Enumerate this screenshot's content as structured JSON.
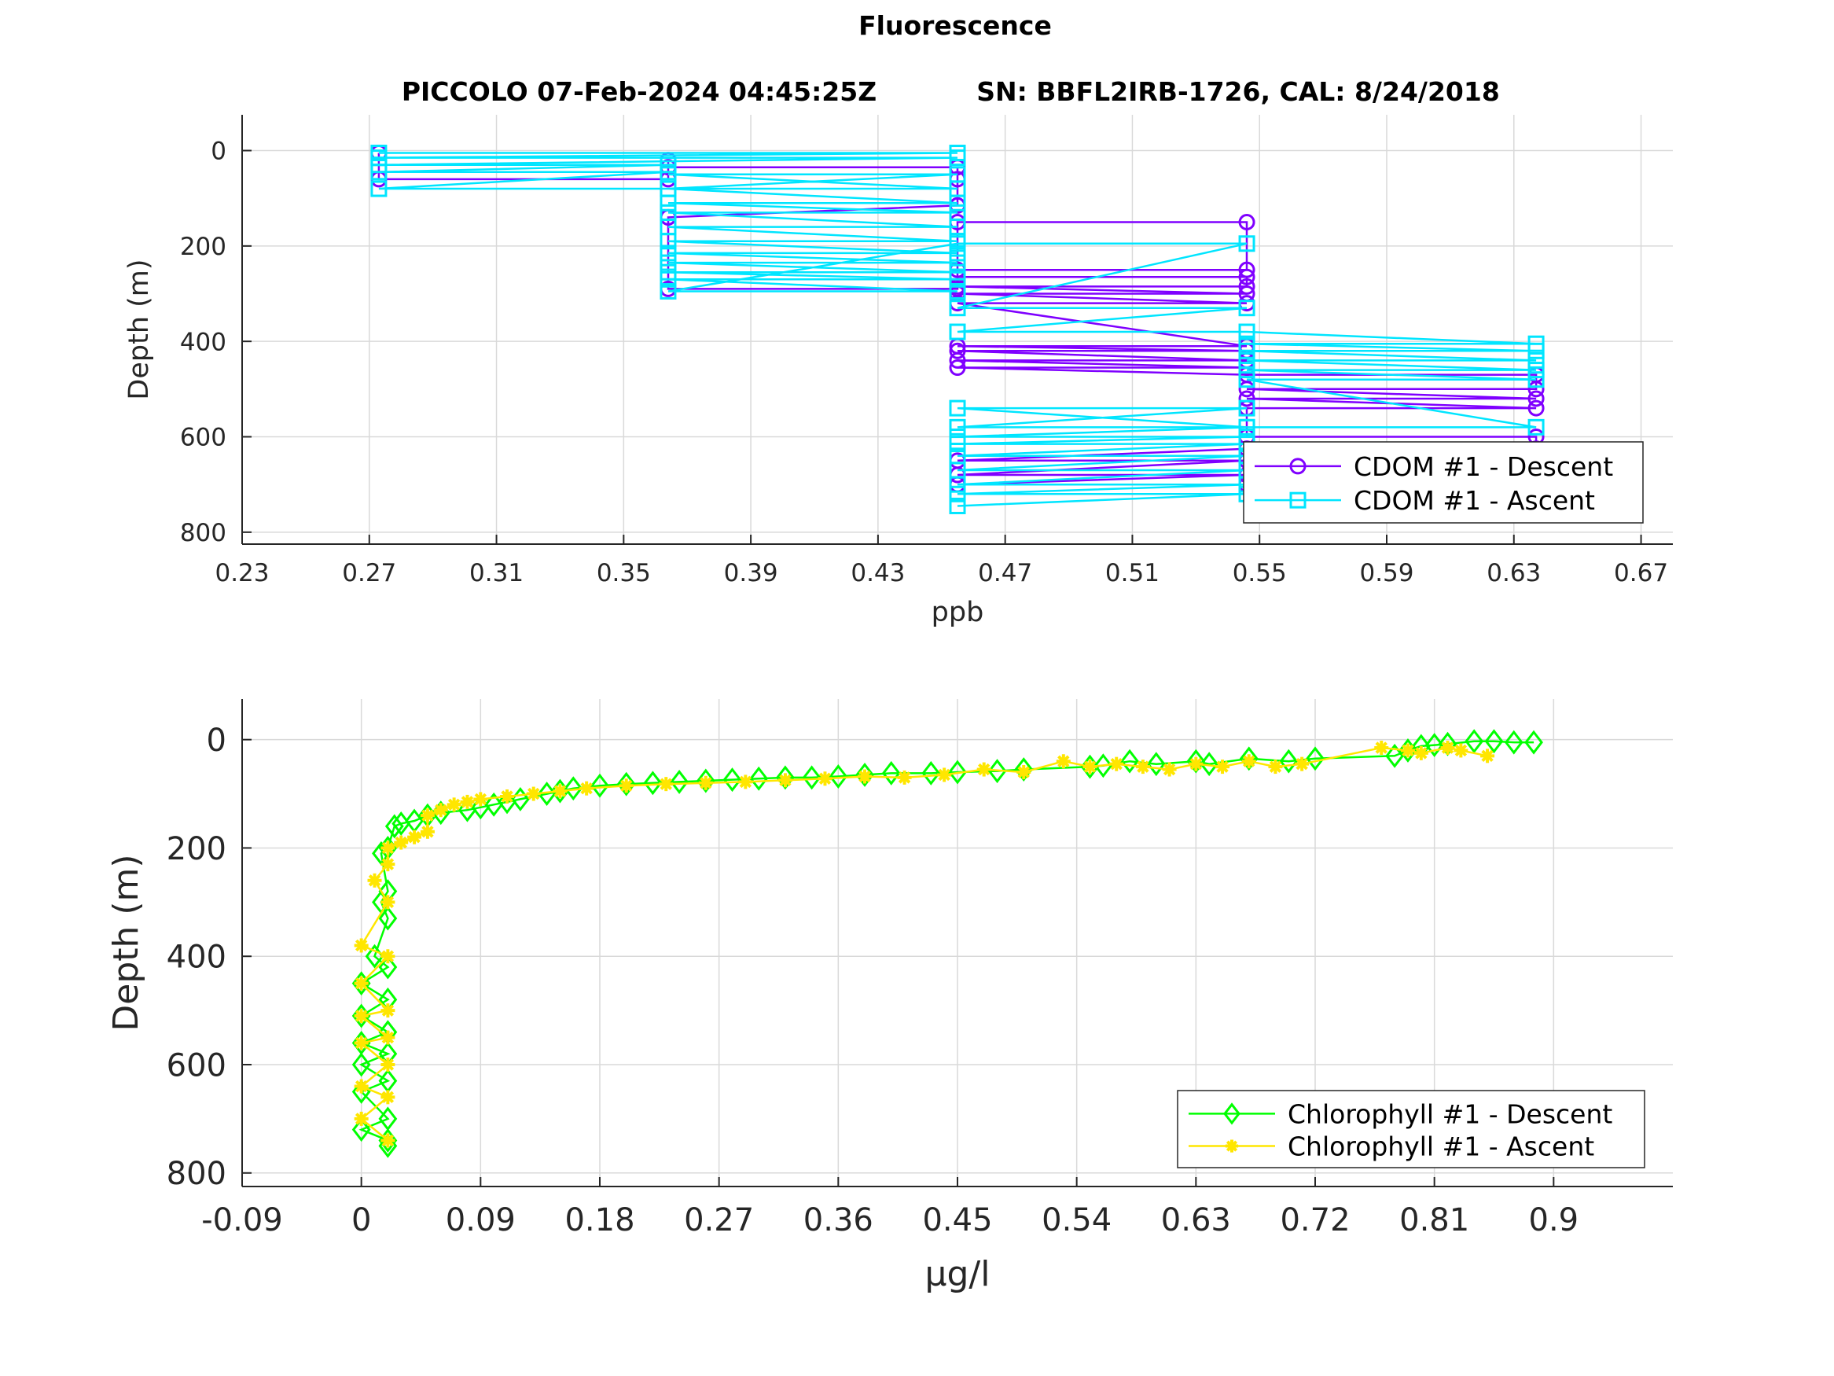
{
  "figure": {
    "title": "Fluorescence",
    "subtitle_left": "PICCOLO 07-Feb-2024 04:45:25Z",
    "subtitle_right": "SN: BBFL2IRB-1726, CAL: 8/24/2018"
  },
  "colors": {
    "cdom_descent": "#7f00ff",
    "cdom_ascent": "#00e5ff",
    "chl_descent": "#00ff00",
    "chl_ascent": "#ffe600",
    "grid": "#d9d9d9",
    "axis": "#262626"
  },
  "chart_data": [
    {
      "type": "line",
      "subplot": "top",
      "xlabel": "ppb",
      "ylabel": "Depth (m)",
      "xlim": [
        0.23,
        0.68
      ],
      "ylim": [
        -75,
        825
      ],
      "y_reversed": true,
      "grid": true,
      "xticks": [
        "0.23",
        "0.27",
        "0.31",
        "0.35",
        "0.39",
        "0.43",
        "0.47",
        "0.51",
        "0.55",
        "0.59",
        "0.63",
        "0.67"
      ],
      "yticks": [
        "0",
        "200",
        "400",
        "600",
        "800"
      ],
      "legend_position": "bottom-right",
      "series": [
        {
          "name": "CDOM #1 - Descent",
          "marker": "circle",
          "color_key": "cdom_descent",
          "x": [
            0.273,
            0.273,
            0.364,
            0.364,
            0.364,
            0.455,
            0.455,
            0.455,
            0.455,
            0.364,
            0.364,
            0.364,
            0.455,
            0.455,
            0.546,
            0.546,
            0.455,
            0.455,
            0.546,
            0.546,
            0.455,
            0.546,
            0.455,
            0.546,
            0.455,
            0.546,
            0.455,
            0.546,
            0.455,
            0.546,
            0.455,
            0.546,
            0.455,
            0.546,
            0.637,
            0.637,
            0.546,
            0.637,
            0.546,
            0.637,
            0.546,
            0.546,
            0.637,
            0.637,
            0.546,
            0.455,
            0.546,
            0.455,
            0.546,
            0.455,
            0.546
          ],
          "y": [
            5,
            60,
            60,
            20,
            35,
            35,
            60,
            115,
            115,
            140,
            140,
            290,
            290,
            150,
            150,
            250,
            250,
            265,
            265,
            285,
            285,
            300,
            300,
            320,
            320,
            410,
            410,
            420,
            420,
            440,
            440,
            455,
            455,
            470,
            470,
            500,
            500,
            520,
            520,
            540,
            540,
            600,
            600,
            625,
            625,
            650,
            650,
            680,
            680,
            700,
            700
          ]
        },
        {
          "name": "CDOM #1 - Ascent",
          "marker": "square",
          "color_key": "cdom_ascent",
          "x": [
            0.273,
            0.455,
            0.273,
            0.455,
            0.273,
            0.364,
            0.273,
            0.364,
            0.273,
            0.364,
            0.455,
            0.364,
            0.455,
            0.364,
            0.455,
            0.364,
            0.455,
            0.364,
            0.455,
            0.364,
            0.455,
            0.364,
            0.455,
            0.364,
            0.455,
            0.364,
            0.455,
            0.364,
            0.455,
            0.364,
            0.455,
            0.364,
            0.455,
            0.546,
            0.455,
            0.546,
            0.455,
            0.546,
            0.637,
            0.546,
            0.637,
            0.546,
            0.637,
            0.546,
            0.637,
            0.546,
            0.637,
            0.546,
            0.637,
            0.546,
            0.455,
            0.546,
            0.455,
            0.546,
            0.455,
            0.546,
            0.455,
            0.546,
            0.455,
            0.546,
            0.455,
            0.546,
            0.455,
            0.546,
            0.455,
            0.546,
            0.455
          ],
          "y": [
            5,
            5,
            15,
            15,
            30,
            30,
            45,
            45,
            80,
            80,
            50,
            50,
            80,
            80,
            110,
            110,
            130,
            130,
            160,
            160,
            190,
            190,
            215,
            215,
            235,
            235,
            255,
            255,
            270,
            270,
            295,
            295,
            195,
            195,
            330,
            330,
            380,
            380,
            405,
            405,
            420,
            420,
            440,
            440,
            460,
            460,
            480,
            480,
            580,
            580,
            540,
            540,
            580,
            580,
            600,
            600,
            615,
            615,
            640,
            640,
            670,
            670,
            700,
            700,
            720,
            720,
            745
          ]
        }
      ]
    },
    {
      "type": "line",
      "subplot": "bottom",
      "xlabel": "μg/l",
      "ylabel": "Depth (m)",
      "xlim": [
        -0.09,
        0.99
      ],
      "ylim": [
        -75,
        825
      ],
      "y_reversed": true,
      "grid": true,
      "xticks": [
        "-0.09",
        "0",
        "0.09",
        "0.18",
        "0.27",
        "0.36",
        "0.45",
        "0.54",
        "0.63",
        "0.72",
        "0.81",
        "0.9"
      ],
      "yticks": [
        "0",
        "200",
        "400",
        "600",
        "800"
      ],
      "legend_position": "bottom-right",
      "series": [
        {
          "name": "Chlorophyll #1 - Descent",
          "marker": "diamond",
          "color_key": "chl_descent",
          "x": [
            0.885,
            0.87,
            0.855,
            0.84,
            0.82,
            0.81,
            0.8,
            0.79,
            0.78,
            0.72,
            0.7,
            0.67,
            0.64,
            0.63,
            0.6,
            0.58,
            0.56,
            0.55,
            0.5,
            0.48,
            0.45,
            0.43,
            0.4,
            0.38,
            0.36,
            0.34,
            0.32,
            0.3,
            0.28,
            0.26,
            0.24,
            0.22,
            0.2,
            0.18,
            0.16,
            0.15,
            0.14,
            0.12,
            0.11,
            0.1,
            0.09,
            0.08,
            0.06,
            0.05,
            0.04,
            0.03,
            0.025,
            0.02,
            0.015,
            0.02,
            0.015,
            0.02,
            0.01,
            0.02,
            0.0,
            0.02,
            0.0,
            0.02,
            0.0,
            0.02,
            0.0,
            0.02,
            0.0,
            0.02,
            0.0,
            0.02,
            0.02
          ],
          "y": [
            5,
            5,
            3,
            3,
            8,
            10,
            12,
            20,
            30,
            35,
            40,
            35,
            45,
            40,
            45,
            40,
            48,
            50,
            55,
            58,
            60,
            62,
            62,
            65,
            68,
            70,
            70,
            72,
            74,
            76,
            78,
            80,
            82,
            85,
            90,
            95,
            100,
            110,
            115,
            120,
            125,
            130,
            135,
            140,
            150,
            155,
            160,
            200,
            210,
            280,
            300,
            330,
            400,
            420,
            450,
            480,
            510,
            540,
            560,
            580,
            600,
            630,
            650,
            700,
            720,
            740,
            750
          ]
        },
        {
          "name": "Chlorophyll #1 - Ascent",
          "marker": "asterisk",
          "color_key": "chl_ascent",
          "x": [
            0.85,
            0.83,
            0.82,
            0.8,
            0.79,
            0.77,
            0.71,
            0.69,
            0.67,
            0.65,
            0.63,
            0.61,
            0.59,
            0.57,
            0.55,
            0.53,
            0.5,
            0.47,
            0.44,
            0.41,
            0.38,
            0.35,
            0.32,
            0.29,
            0.26,
            0.23,
            0.2,
            0.17,
            0.15,
            0.13,
            0.11,
            0.09,
            0.08,
            0.07,
            0.06,
            0.05,
            0.05,
            0.04,
            0.03,
            0.02,
            0.02,
            0.01,
            0.02,
            0.0,
            0.02,
            0.0,
            0.02,
            0.0,
            0.02,
            0.0,
            0.02,
            0.0,
            0.02,
            0.0,
            0.02
          ],
          "y": [
            30,
            20,
            15,
            25,
            20,
            15,
            45,
            50,
            40,
            50,
            45,
            55,
            50,
            45,
            50,
            40,
            60,
            55,
            65,
            70,
            68,
            72,
            75,
            78,
            80,
            82,
            85,
            90,
            95,
            100,
            105,
            110,
            115,
            120,
            130,
            140,
            170,
            180,
            190,
            200,
            230,
            260,
            300,
            380,
            400,
            450,
            500,
            510,
            550,
            560,
            600,
            640,
            660,
            700,
            740
          ]
        }
      ]
    }
  ]
}
